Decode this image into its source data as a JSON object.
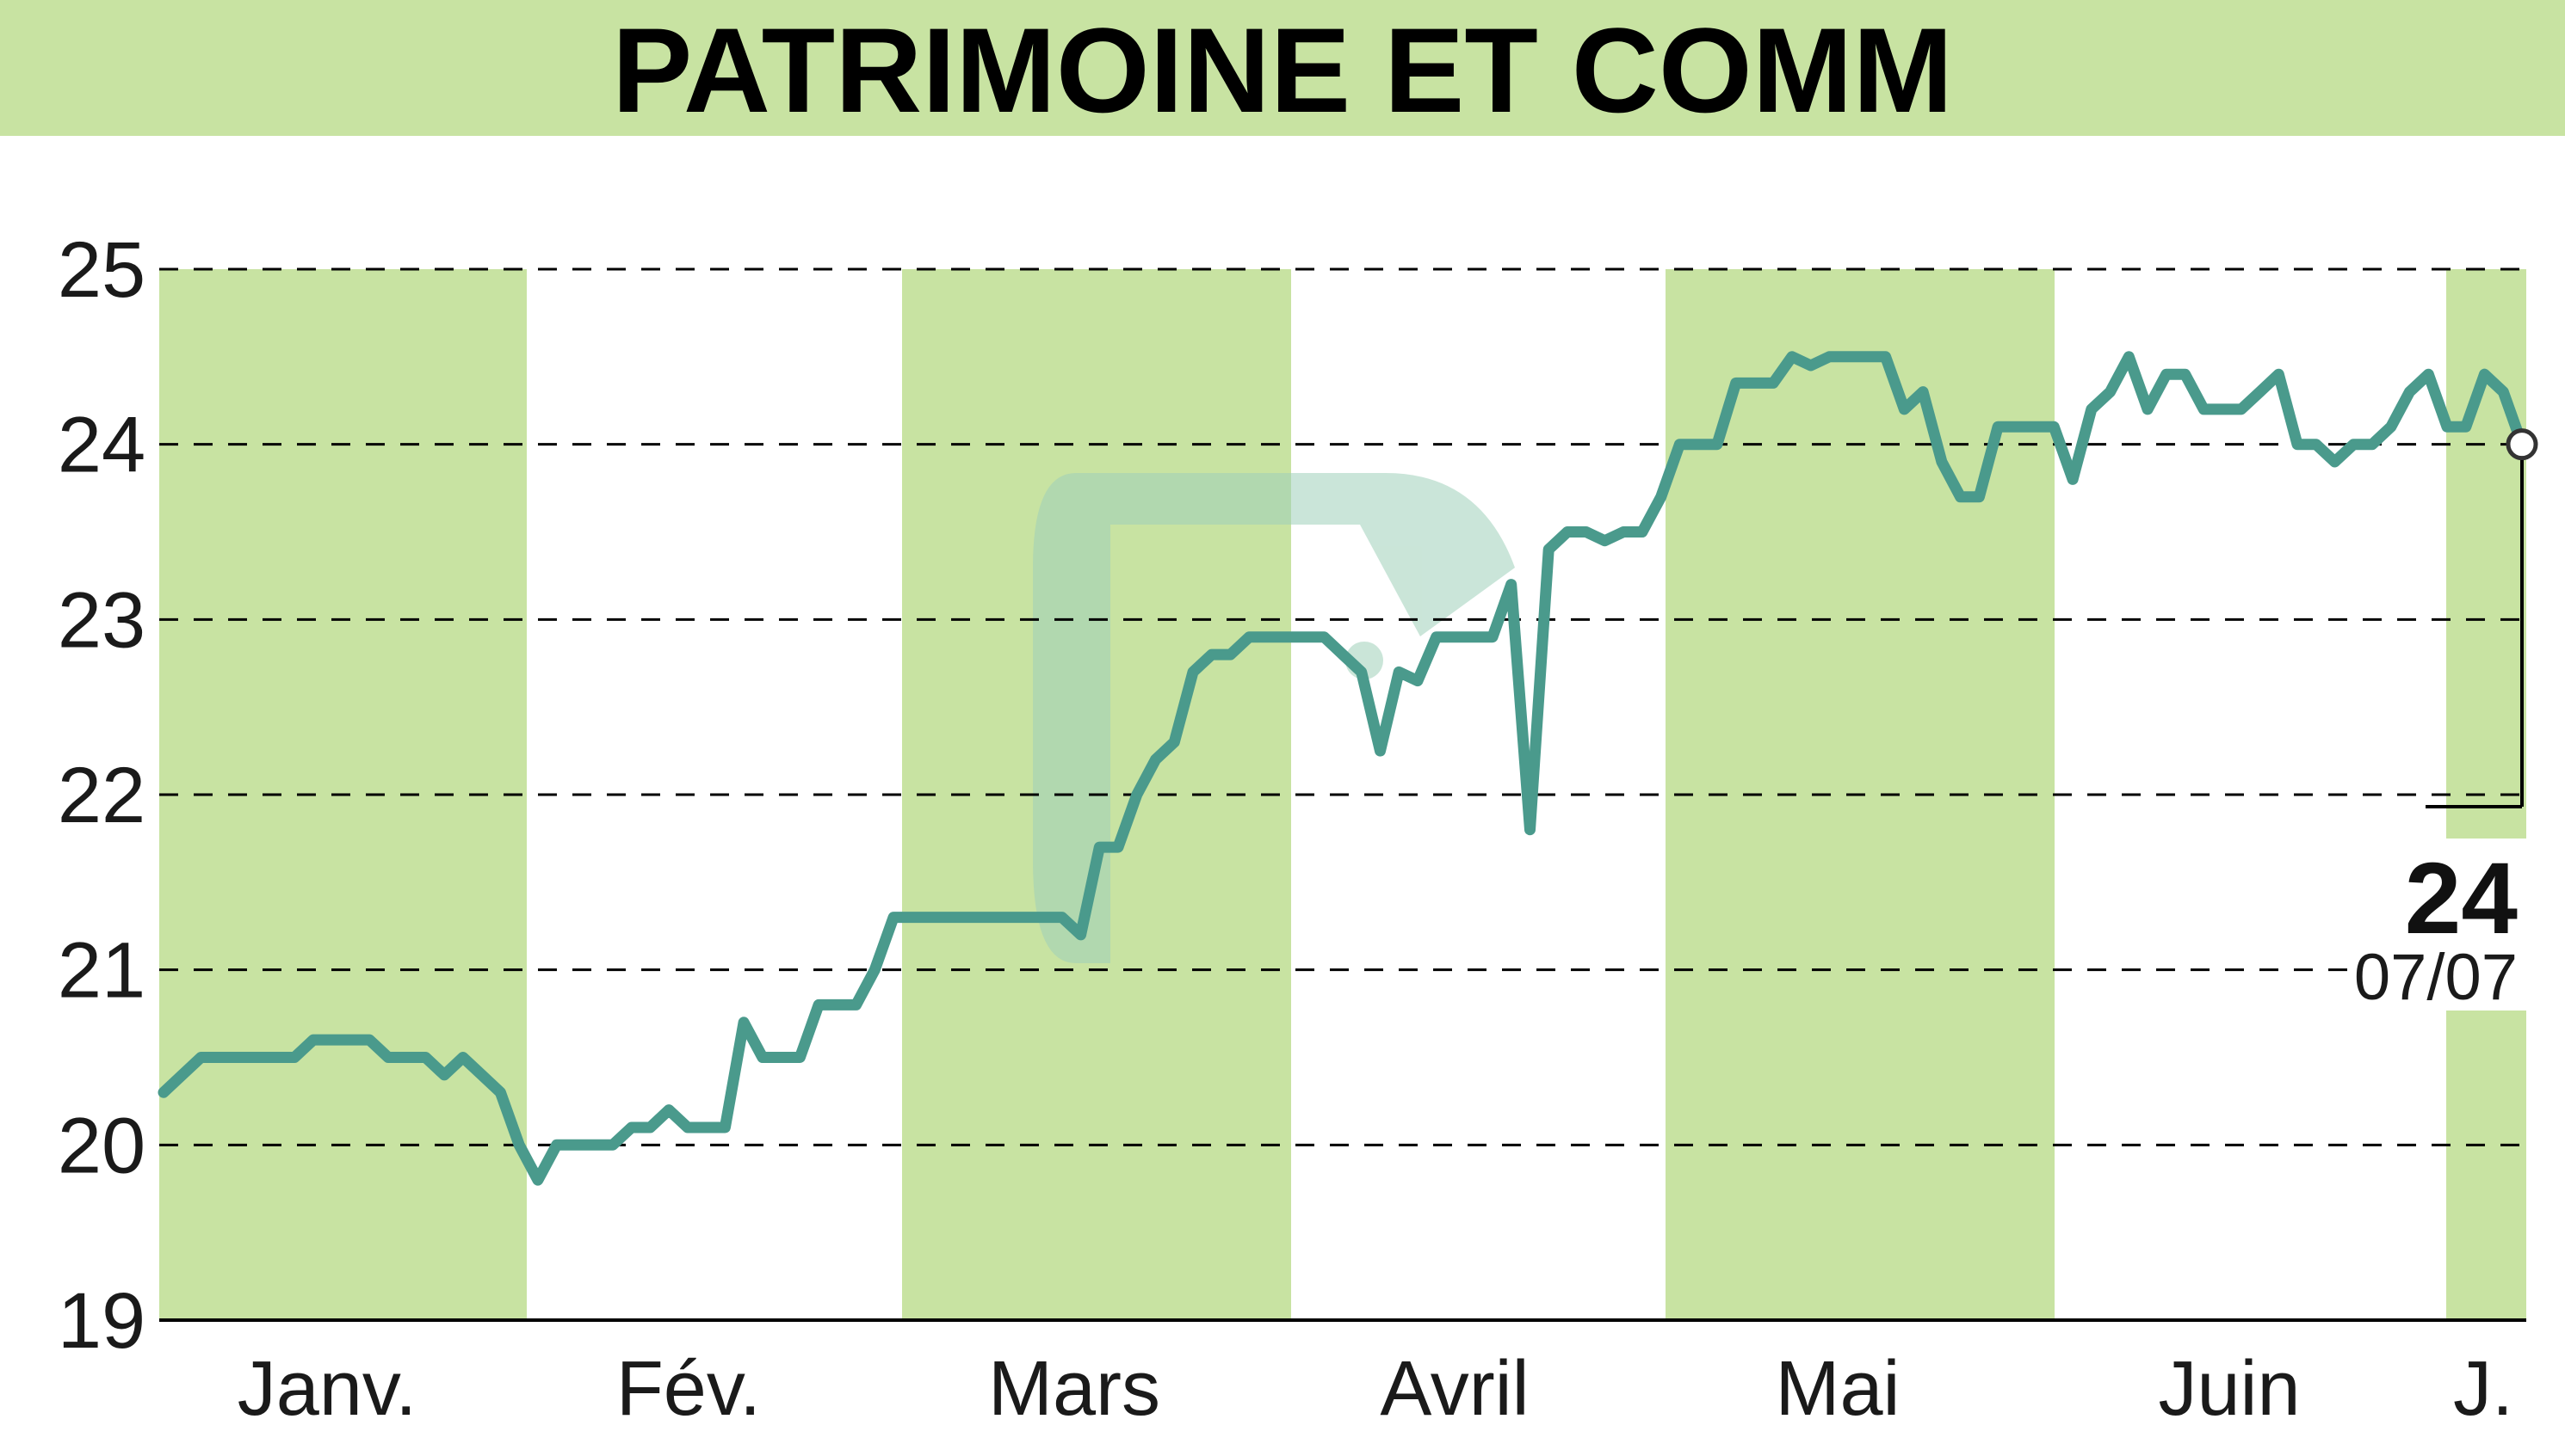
{
  "title": "PATRIMOINE ET COMM",
  "colors": {
    "title_band": "#c8e3a2",
    "month_band": "#c8e3a2",
    "line": "#4a9a8c",
    "grid": "#000000",
    "watermark": "#9fd0ba"
  },
  "chart_data": {
    "type": "line",
    "title": "PATRIMOINE ET COMM",
    "ylim": [
      19,
      25
    ],
    "yticks": [
      "19",
      "20",
      "21",
      "22",
      "23",
      "24",
      "25"
    ],
    "grid": "dashed horizontal",
    "months": [
      "Janv.",
      "Fév.",
      "Mars",
      "Avril",
      "Mai",
      "Juin",
      "J."
    ],
    "shaded_months": [
      "Janv.",
      "Mars",
      "Mai",
      "J."
    ],
    "series": [
      {
        "values": [
          20.3,
          20.4,
          20.5,
          20.5,
          20.5,
          20.5,
          20.5,
          20.5,
          20.6,
          20.6,
          20.6,
          20.6,
          20.5,
          20.5,
          20.5,
          20.4,
          20.5,
          20.4,
          20.3,
          20.0,
          19.8,
          20.0,
          20.0,
          20.0,
          20.0,
          20.1,
          20.1,
          20.2,
          20.1,
          20.1,
          20.1,
          20.7,
          20.5,
          20.5,
          20.5,
          20.8,
          20.8,
          20.8,
          21.0,
          21.3,
          21.3,
          21.3,
          21.3,
          21.3,
          21.3,
          21.3,
          21.3,
          21.3,
          21.3,
          21.2,
          21.7,
          21.7,
          22.0,
          22.2,
          22.3,
          22.7,
          22.8,
          22.8,
          22.9,
          22.9,
          22.9,
          22.9,
          22.9,
          22.8,
          22.7,
          22.25,
          22.7,
          22.65,
          22.9,
          22.9,
          22.9,
          22.9,
          23.2,
          21.8,
          23.4,
          23.5,
          23.5,
          23.45,
          23.5,
          23.5,
          23.7,
          24.0,
          24.0,
          24.0,
          24.35,
          24.35,
          24.35,
          24.5,
          24.45,
          24.5,
          24.5,
          24.5,
          24.5,
          24.2,
          24.3,
          23.9,
          23.7,
          23.7,
          24.1,
          24.1,
          24.1,
          24.1,
          23.8,
          24.2,
          24.3,
          24.5,
          24.2,
          24.4,
          24.4,
          24.2,
          24.2,
          24.2,
          24.3,
          24.4,
          24.0,
          24.0,
          23.9,
          24.0,
          24.0,
          24.1,
          24.3,
          24.4,
          24.1,
          24.1,
          24.4,
          24.3,
          24.0
        ]
      }
    ],
    "last_value": "24",
    "last_date": "07/07"
  }
}
